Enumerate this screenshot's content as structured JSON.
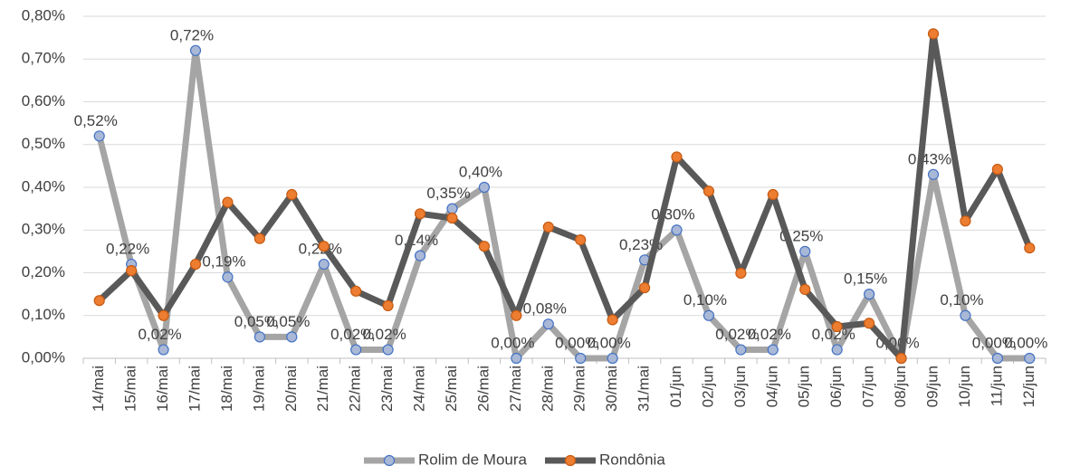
{
  "chart_data": {
    "type": "line",
    "categories": [
      "14/mai",
      "15/mai",
      "16/mai",
      "17/mai",
      "18/mai",
      "19/mai",
      "20/mai",
      "21/mai",
      "22/mai",
      "23/mai",
      "24/mai",
      "25/mai",
      "26/mai",
      "27/mai",
      "28/mai",
      "29/mai",
      "30/mai",
      "31/mai",
      "01/jun",
      "02/jun",
      "03/jun",
      "04/jun",
      "05/jun",
      "06/jun",
      "07/jun",
      "08/jun",
      "09/jun",
      "10/jun",
      "11/jun",
      "12/jun"
    ],
    "series": [
      {
        "name": "Rolim de Moura",
        "color": "#a5a5a5",
        "marker_color": "#a9b8d6",
        "marker_edge": "#4472c4",
        "values": [
          0.52,
          0.22,
          0.02,
          0.72,
          0.19,
          0.05,
          0.05,
          0.22,
          0.02,
          0.02,
          0.24,
          0.35,
          0.4,
          0.0,
          0.08,
          0.0,
          0.0,
          0.23,
          0.3,
          0.1,
          0.02,
          0.02,
          0.25,
          0.02,
          0.15,
          0.0,
          0.43,
          0.1,
          0.0,
          0.0
        ],
        "value_labels": [
          "0,52%",
          "0,22%",
          "0,02%",
          "0,72%",
          "0,19%",
          "0,05%",
          "0,05%",
          "0,22%",
          "0,02%",
          "0,02%",
          "0,24%",
          "0,35%",
          "0,40%",
          "0,00%",
          "0,08%",
          "0,00%",
          "0,00%",
          "0,23%",
          "0,30%",
          "0,10%",
          "0,02%",
          "0,02%",
          "0,25%",
          "0,02%",
          "0,15%",
          "0,00%",
          "0,43%",
          "0,10%",
          "0,00%",
          "0,00%"
        ]
      },
      {
        "name": "Rondônia",
        "color": "#595959",
        "marker_color": "#ed7d31",
        "marker_edge": "#c55a11",
        "values": [
          0.135,
          0.205,
          0.1,
          0.22,
          0.365,
          0.28,
          0.383,
          0.262,
          0.157,
          0.123,
          0.338,
          0.328,
          0.262,
          0.1,
          0.307,
          0.277,
          0.09,
          0.165,
          0.471,
          0.391,
          0.199,
          0.383,
          0.161,
          0.074,
          0.082,
          0.0,
          0.759,
          0.321,
          0.442,
          0.258
        ]
      }
    ],
    "ylim": [
      0,
      0.8
    ],
    "yticks": [
      {
        "value": 0,
        "label": "0,00%"
      },
      {
        "value": 0.1,
        "label": "0,10%"
      },
      {
        "value": 0.2,
        "label": "0,20%"
      },
      {
        "value": 0.3,
        "label": "0,30%"
      },
      {
        "value": 0.4,
        "label": "0,40%"
      },
      {
        "value": 0.5,
        "label": "0,50%"
      },
      {
        "value": 0.6,
        "label": "0,60%"
      },
      {
        "value": 0.7,
        "label": "0,70%"
      },
      {
        "value": 0.8,
        "label": "0,80%"
      }
    ],
    "grid": true,
    "legend": "bottom"
  }
}
